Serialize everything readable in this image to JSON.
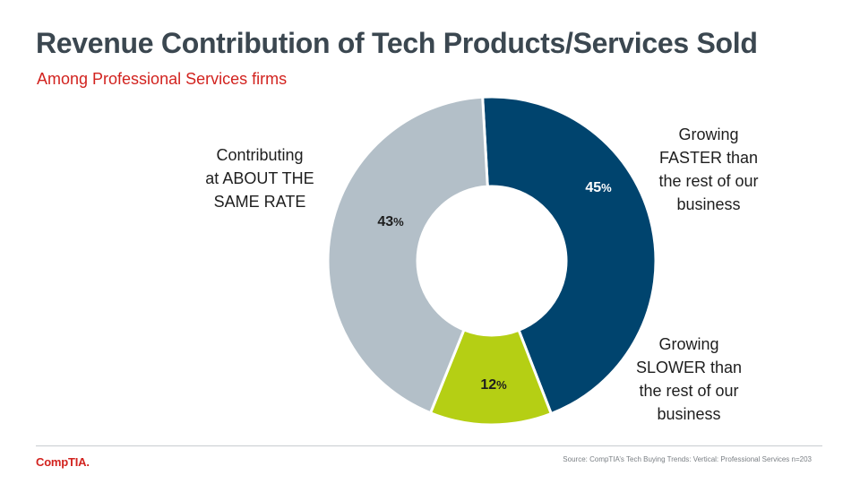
{
  "slide": {
    "title": "Revenue Contribution of Tech Products/Services Sold",
    "subtitle": "Among Professional Services firms"
  },
  "chart_data": {
    "type": "pie",
    "variant": "donut",
    "title": "Revenue Contribution of Tech Products/Services Sold",
    "categories": [
      "Growing FASTER than the rest of our business",
      "Growing SLOWER than the rest of our business",
      "Contributing at ABOUT THE SAME RATE"
    ],
    "values": [
      45,
      12,
      43
    ],
    "unit": "%",
    "colors": [
      "#00446e",
      "#b5cf14",
      "#b3bfc8"
    ],
    "value_label_colors": [
      "#ffffff",
      "#1e1e1e",
      "#1e1e1e"
    ],
    "slices": [
      {
        "name": "faster",
        "label_lines": [
          "Growing",
          "FASTER than",
          "the rest of our",
          "business"
        ],
        "value_text": "45",
        "pct_symbol": "%"
      },
      {
        "name": "slower",
        "label_lines": [
          "Growing",
          "SLOWER than",
          "the rest of our",
          "business"
        ],
        "value_text": "12",
        "pct_symbol": "%"
      },
      {
        "name": "same-rate",
        "label_lines": [
          "Contributing",
          "at ABOUT THE",
          "SAME RATE"
        ],
        "value_text": "43",
        "pct_symbol": "%"
      }
    ]
  },
  "footer": {
    "logo_text": "CompTIA.",
    "source": "Source: CompTIA’s Tech Buying Trends: Vertical:  Professional Services n=203"
  }
}
